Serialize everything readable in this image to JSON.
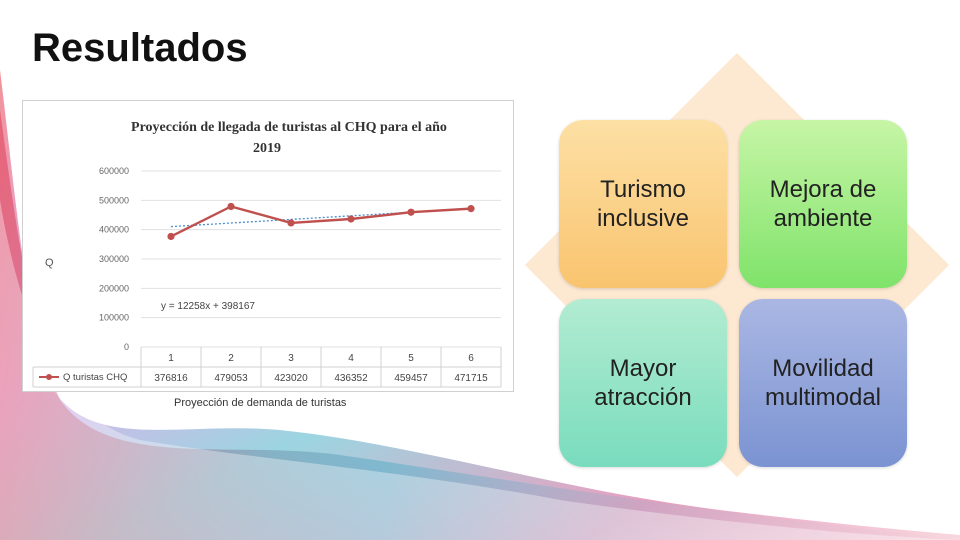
{
  "slide": {
    "title": "Resultados",
    "caption": "Proyección de demanda de turistas"
  },
  "tiles": [
    {
      "label": "Turismo inclusive"
    },
    {
      "label": "Mejora de ambiente"
    },
    {
      "label": "Mayor atracción"
    },
    {
      "label": "Movilidad multimodal"
    }
  ],
  "colors": {
    "series": "#c0504d",
    "trendline": "#4a8ccc",
    "tile1": "#f9c46f",
    "tile2": "#7fe36a",
    "tile3": "#79dcbd",
    "tile4": "#7b93d2"
  },
  "chart_data": {
    "type": "line",
    "title": "Proyección de llegada de turistas al CHQ para el año 2019",
    "ylabel": "Q",
    "ylim": [
      0,
      600000
    ],
    "yticks": [
      0,
      100000,
      200000,
      300000,
      400000,
      500000,
      600000
    ],
    "categories": [
      "1",
      "2",
      "3",
      "4",
      "5",
      "6"
    ],
    "series": [
      {
        "name": "Q turistas CHQ",
        "values": [
          376816,
          479053,
          423020,
          436352,
          459457,
          471715
        ]
      }
    ],
    "trendline_label": "y = 12258x + 398167",
    "trendline": {
      "slope": 12258,
      "intercept": 398167
    },
    "data_table": true,
    "grid": true
  }
}
